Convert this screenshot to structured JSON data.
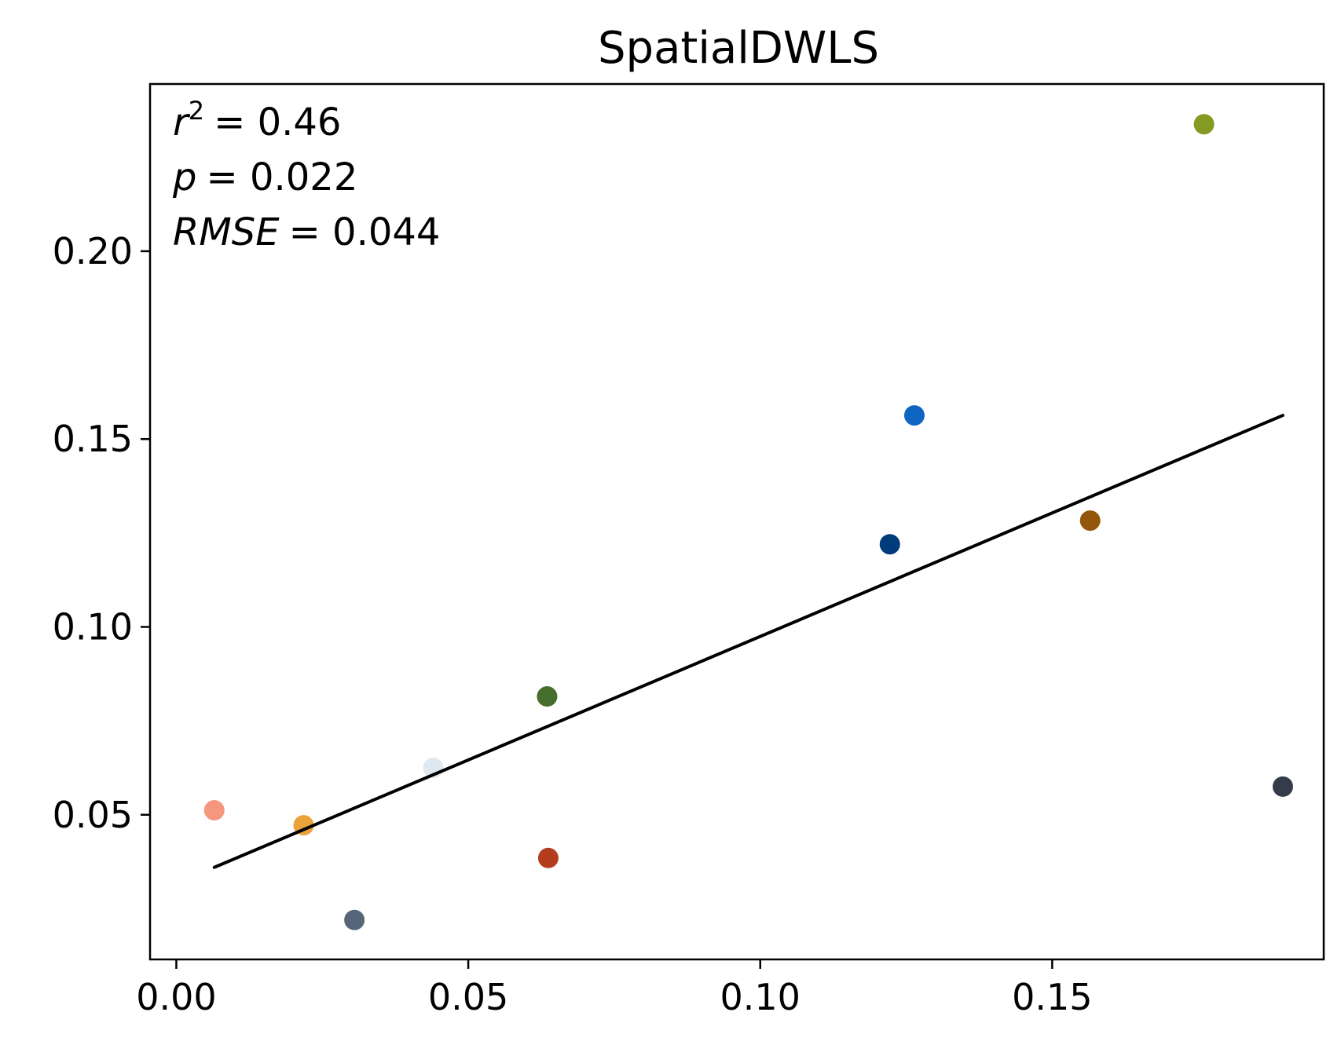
{
  "chart_data": {
    "type": "scatter",
    "title": "SpatialDWLS",
    "xlabel": "",
    "ylabel": "",
    "xlim": [
      -0.0045,
      0.1965
    ],
    "ylim": [
      0.0115,
      0.2445
    ],
    "xticks": [
      0.0,
      0.05,
      0.1,
      0.15
    ],
    "xtick_labels": [
      "0.00",
      "0.05",
      "0.10",
      "0.15"
    ],
    "yticks": [
      0.05,
      0.1,
      0.15,
      0.2
    ],
    "ytick_labels": [
      "0.05",
      "0.10",
      "0.15",
      "0.20"
    ],
    "grid": false,
    "points": [
      {
        "x": 0.0065,
        "y": 0.0512,
        "color": "#f4977d"
      },
      {
        "x": 0.0218,
        "y": 0.0472,
        "color": "#e9a33a"
      },
      {
        "x": 0.0305,
        "y": 0.022,
        "color": "#56657a"
      },
      {
        "x": 0.044,
        "y": 0.0625,
        "color": "#dfe9f2"
      },
      {
        "x": 0.0635,
        "y": 0.0815,
        "color": "#456e2c"
      },
      {
        "x": 0.0637,
        "y": 0.0385,
        "color": "#b23d1f"
      },
      {
        "x": 0.1222,
        "y": 0.122,
        "color": "#003b7c"
      },
      {
        "x": 0.1264,
        "y": 0.1563,
        "color": "#0f65c2"
      },
      {
        "x": 0.1565,
        "y": 0.1283,
        "color": "#93570b"
      },
      {
        "x": 0.176,
        "y": 0.2338,
        "color": "#849a22"
      },
      {
        "x": 0.1895,
        "y": 0.0575,
        "color": "#333c48"
      }
    ],
    "fit_line": {
      "x": [
        0.0065,
        0.1895
      ],
      "y": [
        0.036,
        0.1563
      ],
      "color": "#000000"
    },
    "annotation": {
      "r2_symbol": "r",
      "r2_superscript": "2",
      "r2_value": "= 0.46",
      "p_symbol": "p",
      "p_value": "= 0.022",
      "rmse_symbol": "RMSE",
      "rmse_value": "= 0.044"
    }
  }
}
